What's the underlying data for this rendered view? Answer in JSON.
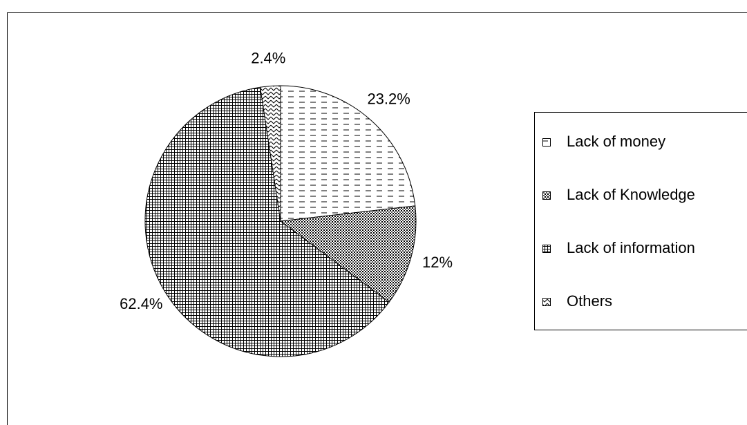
{
  "chart_data": {
    "type": "pie",
    "categories": [
      "Lack of money",
      "Lack of Knowledge",
      "Lack of information",
      "Others"
    ],
    "values": [
      23.2,
      12,
      62.4,
      2.4
    ],
    "value_labels": [
      "23.2%",
      "12%",
      "62.4%",
      "2.4%"
    ],
    "legend": "right"
  }
}
